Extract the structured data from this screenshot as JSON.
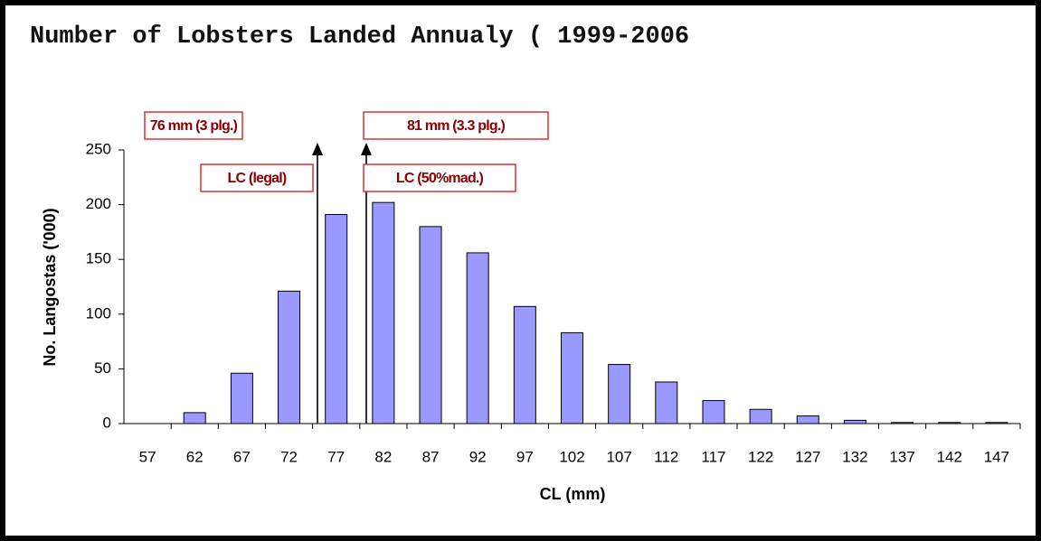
{
  "chart_data": {
    "type": "bar",
    "title": "Number of Lobsters Landed Annualy ( 1999-2006",
    "x_label": "CL (mm)",
    "y_label": "No. Langostas ('000)",
    "categories": [
      "57",
      "62",
      "67",
      "72",
      "77",
      "82",
      "87",
      "92",
      "97",
      "102",
      "107",
      "112",
      "117",
      "122",
      "127",
      "132",
      "137",
      "142",
      "147"
    ],
    "values": [
      0,
      10,
      46,
      121,
      191,
      202,
      180,
      156,
      107,
      83,
      54,
      38,
      21,
      13,
      7,
      3,
      1,
      1,
      1
    ],
    "color": "#9999ff",
    "ylim": [
      0,
      250
    ],
    "yticks": [
      0,
      50,
      100,
      150,
      200,
      250
    ],
    "annotations": [
      "76 mm (3 plg.)",
      "LC (legal)",
      "81 mm (3.3 plg.)",
      "LC (50%mad.)"
    ]
  }
}
